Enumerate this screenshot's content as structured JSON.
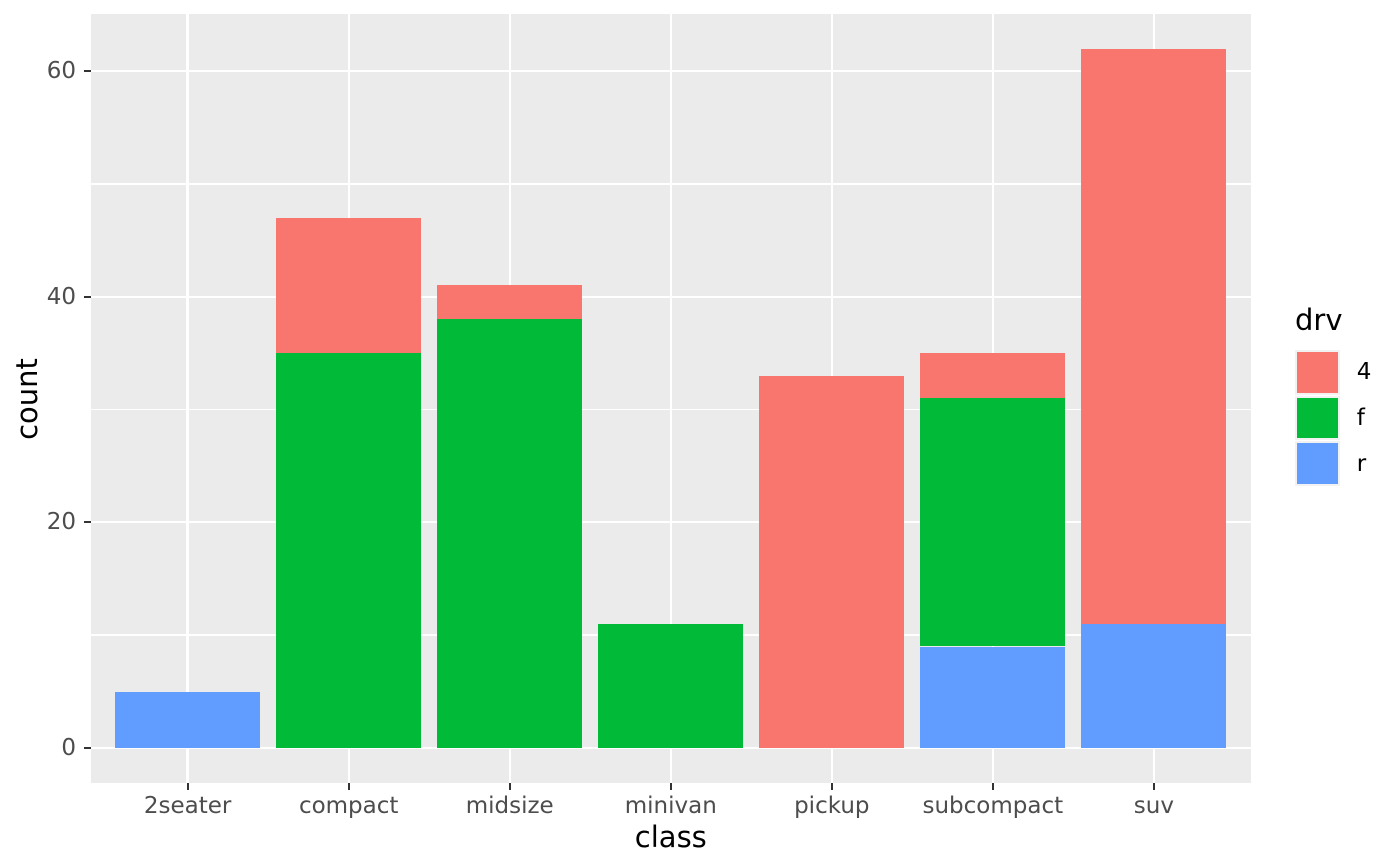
{
  "chart_data": {
    "type": "bar",
    "stacked": true,
    "title": "",
    "xlabel": "class",
    "ylabel": "count",
    "categories": [
      "2seater",
      "compact",
      "midsize",
      "minivan",
      "pickup",
      "subcompact",
      "suv"
    ],
    "series": [
      {
        "name": "4",
        "color": "#F8766D",
        "values": [
          0,
          12,
          3,
          0,
          33,
          4,
          51
        ]
      },
      {
        "name": "f",
        "color": "#00BA38",
        "values": [
          0,
          35,
          38,
          11,
          0,
          22,
          0
        ]
      },
      {
        "name": "r",
        "color": "#619CFF",
        "values": [
          5,
          0,
          0,
          0,
          0,
          9,
          11
        ]
      }
    ],
    "stack_totals": [
      5,
      47,
      41,
      11,
      33,
      35,
      62
    ],
    "stack_order_top_to_bottom": [
      "4",
      "f",
      "r"
    ],
    "y_ticks": [
      0,
      20,
      40,
      60
    ],
    "y_minor_ticks": [
      10,
      30,
      50
    ],
    "ylim": [
      -3.1,
      65.1
    ],
    "grid": "on",
    "legend": {
      "title": "drv",
      "position": "right",
      "entries": [
        {
          "label": "4",
          "color": "#F8766D"
        },
        {
          "label": "f",
          "color": "#00BA38"
        },
        {
          "label": "r",
          "color": "#619CFF"
        }
      ]
    },
    "colors": {
      "panel_bg": "#EBEBEB",
      "grid_major": "#FFFFFF",
      "grid_minor": "#FFFFFF",
      "axis_text": "#4D4D4D",
      "tick_mark": "#333333",
      "title_text": "#000000",
      "legend_key_bg": "#F2F2F2",
      "outer_bg": "#FFFFFF"
    }
  }
}
